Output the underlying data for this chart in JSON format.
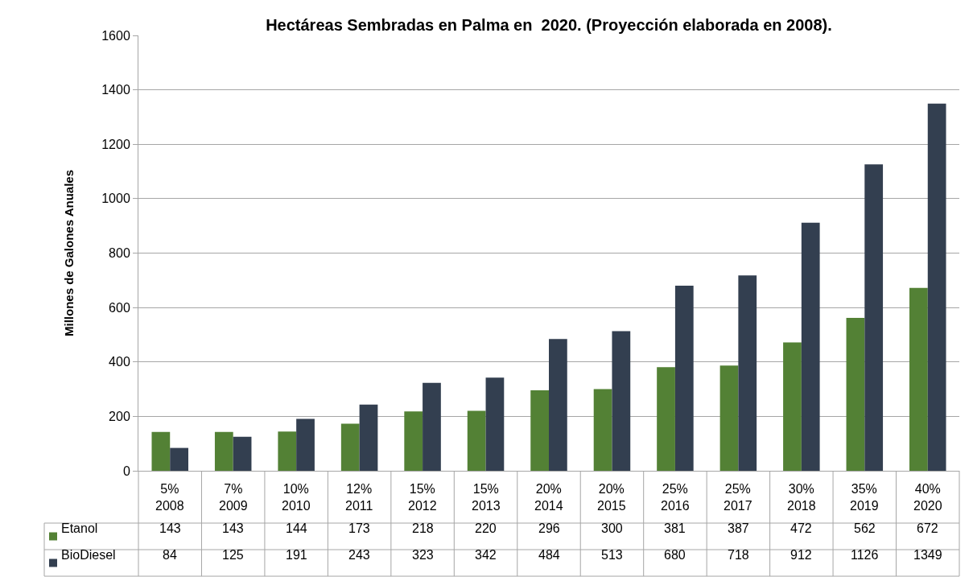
{
  "chart_data": {
    "type": "bar",
    "title": "Hectáreas Sembradas en Palma en  2020. (Proyección elaborada en 2008).",
    "ylabel": "Millones de Galones Anuales",
    "categories": [
      "5%\n2008",
      "7%\n2009",
      "10%\n2010",
      "12%\n2011",
      "15%\n2012",
      "15%\n2013",
      "20%\n2014",
      "20%\n2015",
      "25%\n2016",
      "25%\n2017",
      "30%\n2018",
      "35%\n2019",
      "40%\n2020"
    ],
    "series": [
      {
        "name": "Etanol",
        "color": "#538135",
        "values": [
          143,
          143,
          144,
          173,
          218,
          220,
          296,
          300,
          381,
          387,
          472,
          562,
          672
        ]
      },
      {
        "name": "BioDiesel",
        "color": "#333f50",
        "values": [
          84,
          125,
          191,
          243,
          323,
          342,
          484,
          513,
          680,
          718,
          912,
          1126,
          1349
        ]
      }
    ],
    "ylim": [
      0,
      1600
    ],
    "yticks": [
      0,
      200,
      400,
      600,
      800,
      1000,
      1200,
      1400,
      1600
    ],
    "grid": "y",
    "legend": "bottom left",
    "data_labels": true
  }
}
